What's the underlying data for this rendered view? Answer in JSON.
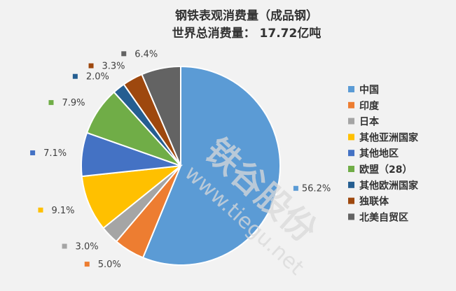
{
  "chart_data": {
    "type": "pie",
    "title": "钢铁表观消费量（成品钢）",
    "subtitle": "世界总消费量：  17.72亿吨",
    "slices": [
      {
        "name": "中国",
        "value": 56.2,
        "label": "56.2%",
        "color": "#5b9bd5"
      },
      {
        "name": "印度",
        "value": 5.0,
        "label": "5.0%",
        "color": "#ed7d31"
      },
      {
        "name": "日本",
        "value": 3.0,
        "label": "3.0%",
        "color": "#a5a5a5"
      },
      {
        "name": "其他亚洲国家",
        "value": 9.1,
        "label": "9.1%",
        "color": "#ffc000"
      },
      {
        "name": "其他地区",
        "value": 7.1,
        "label": "7.1%",
        "color": "#4472c4"
      },
      {
        "name": "欧盟（28）",
        "value": 7.9,
        "label": "7.9%",
        "color": "#70ad47"
      },
      {
        "name": "其他欧洲国家",
        "value": 2.0,
        "label": "2.0%",
        "color": "#255e91"
      },
      {
        "name": "独联体",
        "value": 3.3,
        "label": "3.3%",
        "color": "#9e480e"
      },
      {
        "name": "北美自贸区",
        "value": 6.4,
        "label": "6.4%",
        "color": "#636363"
      }
    ],
    "legend_position": "right",
    "slice_border_color": "#ffffff"
  },
  "watermark": {
    "brand": "铁谷股份",
    "url": "www.tiegu.net"
  }
}
